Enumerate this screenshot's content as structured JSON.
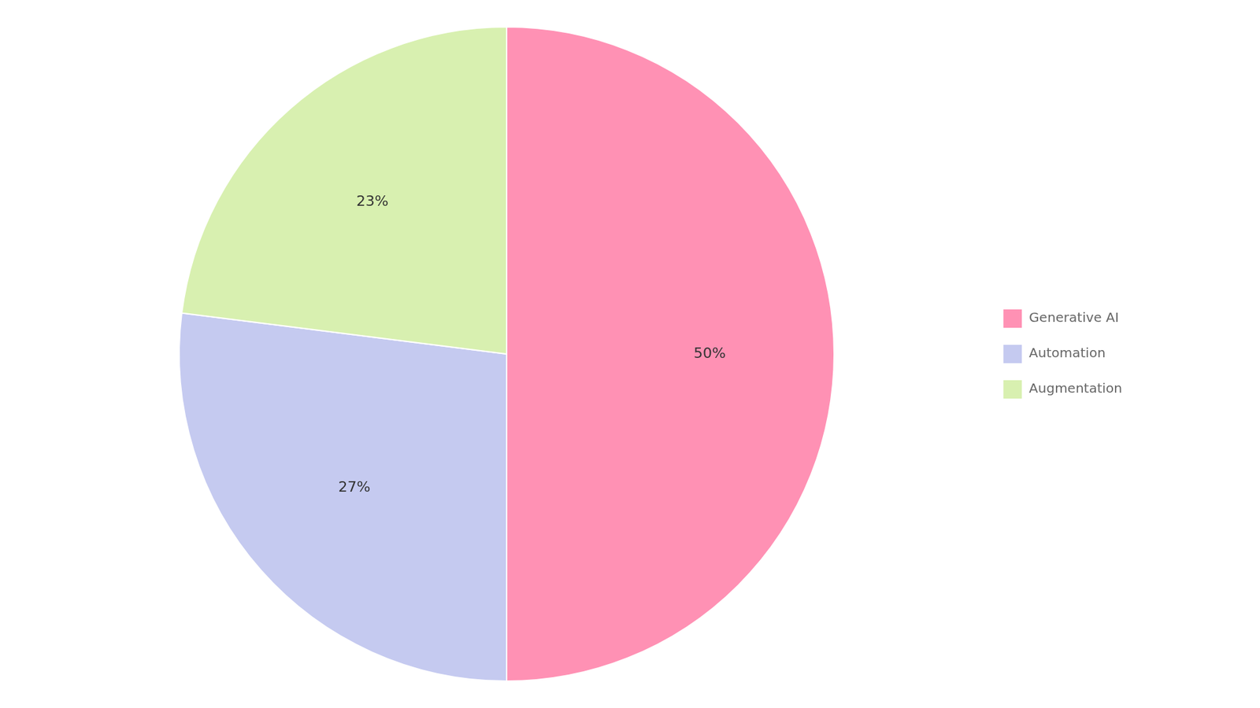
{
  "chart_data": {
    "type": "pie",
    "categories": [
      "Generative AI",
      "Automation",
      "Augmentation"
    ],
    "values": [
      50,
      27,
      23
    ],
    "value_labels": [
      "50%",
      "27%",
      "23%"
    ],
    "colors": [
      "#FF91B4",
      "#C5CAF0",
      "#D8F0B0"
    ],
    "data_labels": true,
    "legend": "right"
  }
}
